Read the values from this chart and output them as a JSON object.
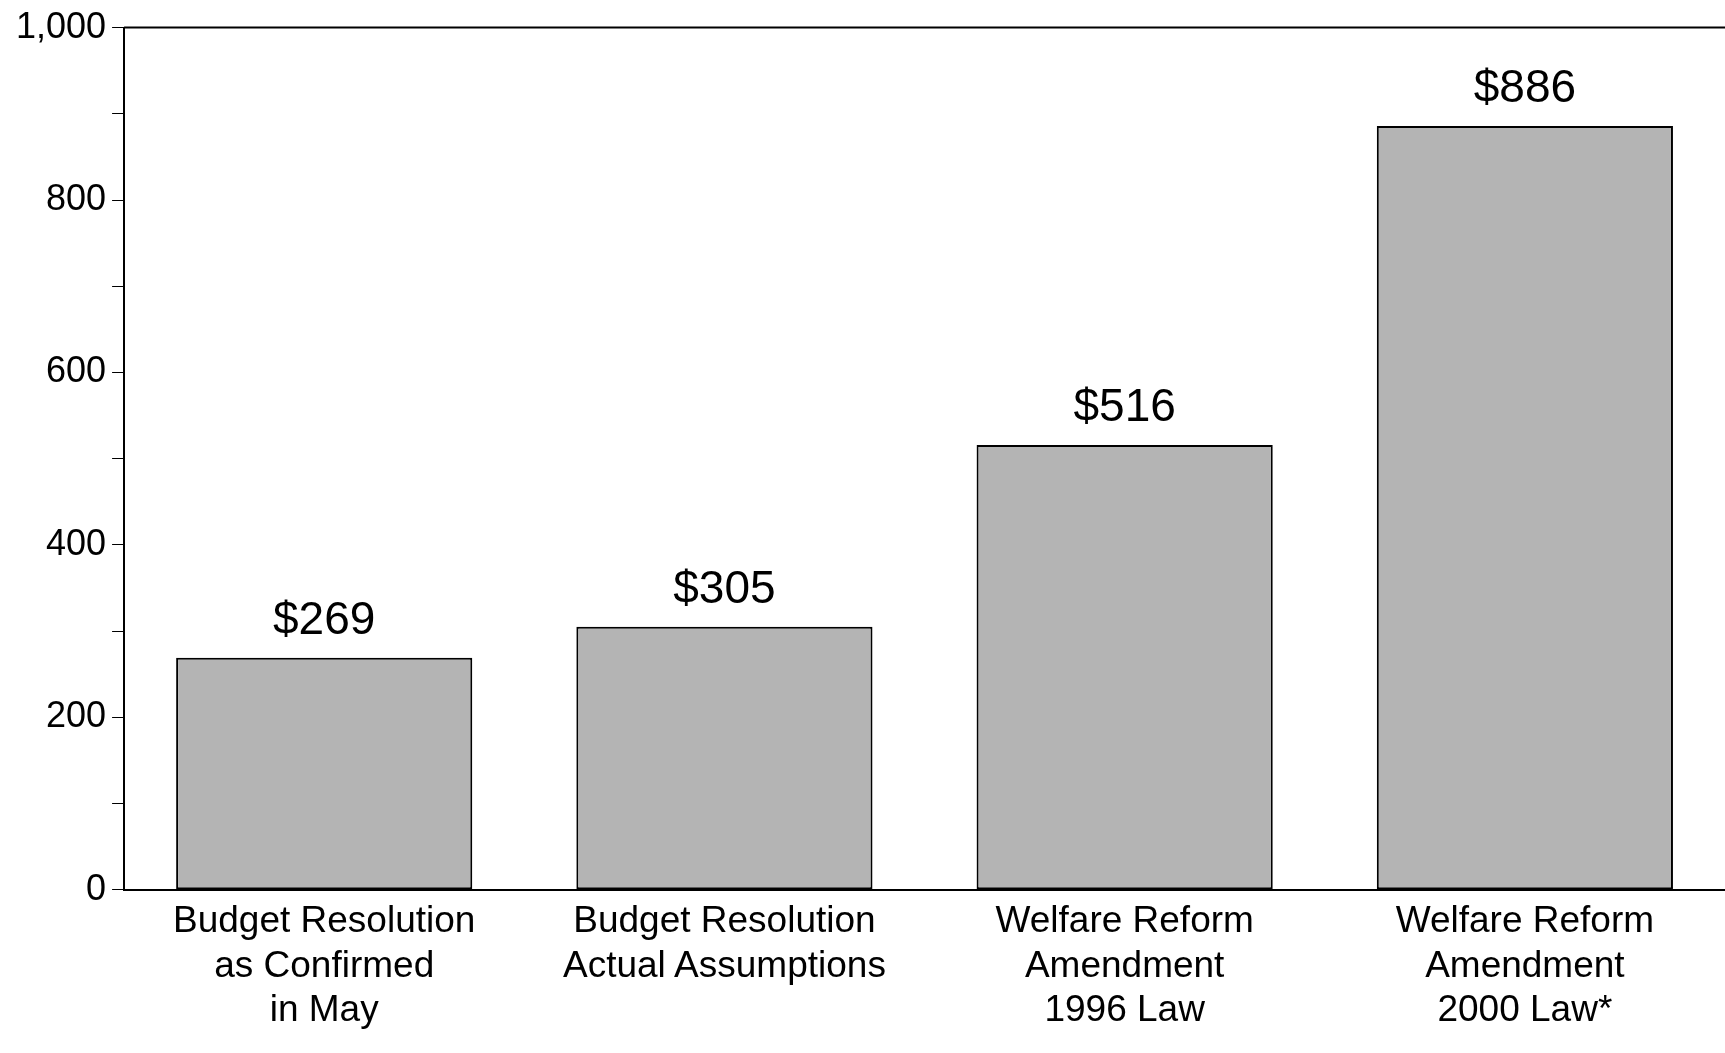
{
  "chart_data": {
    "type": "bar",
    "categories": [
      "Budget Resolution\nas Confirmed\nin May",
      "Budget Resolution\nActual Assumptions",
      "Welfare Reform\nAmendment\n1996 Law",
      "Welfare Reform\nAmendment\n2000 Law*"
    ],
    "values": [
      269,
      305,
      516,
      886
    ],
    "value_labels": [
      "$269",
      "$305",
      "$516",
      "$886"
    ],
    "color": "#b4b4b4",
    "ylim": [
      0,
      1000
    ],
    "yticks": [
      0,
      {
        "value": 100,
        "label": null
      },
      200,
      {
        "value": 300,
        "label": null
      },
      400,
      {
        "value": 500,
        "label": null
      },
      600,
      {
        "value": 700,
        "label": null
      },
      800,
      {
        "value": 900,
        "label": null
      },
      {
        "value": 1000,
        "label": "1,000"
      }
    ],
    "grid": false,
    "legend": false
  }
}
